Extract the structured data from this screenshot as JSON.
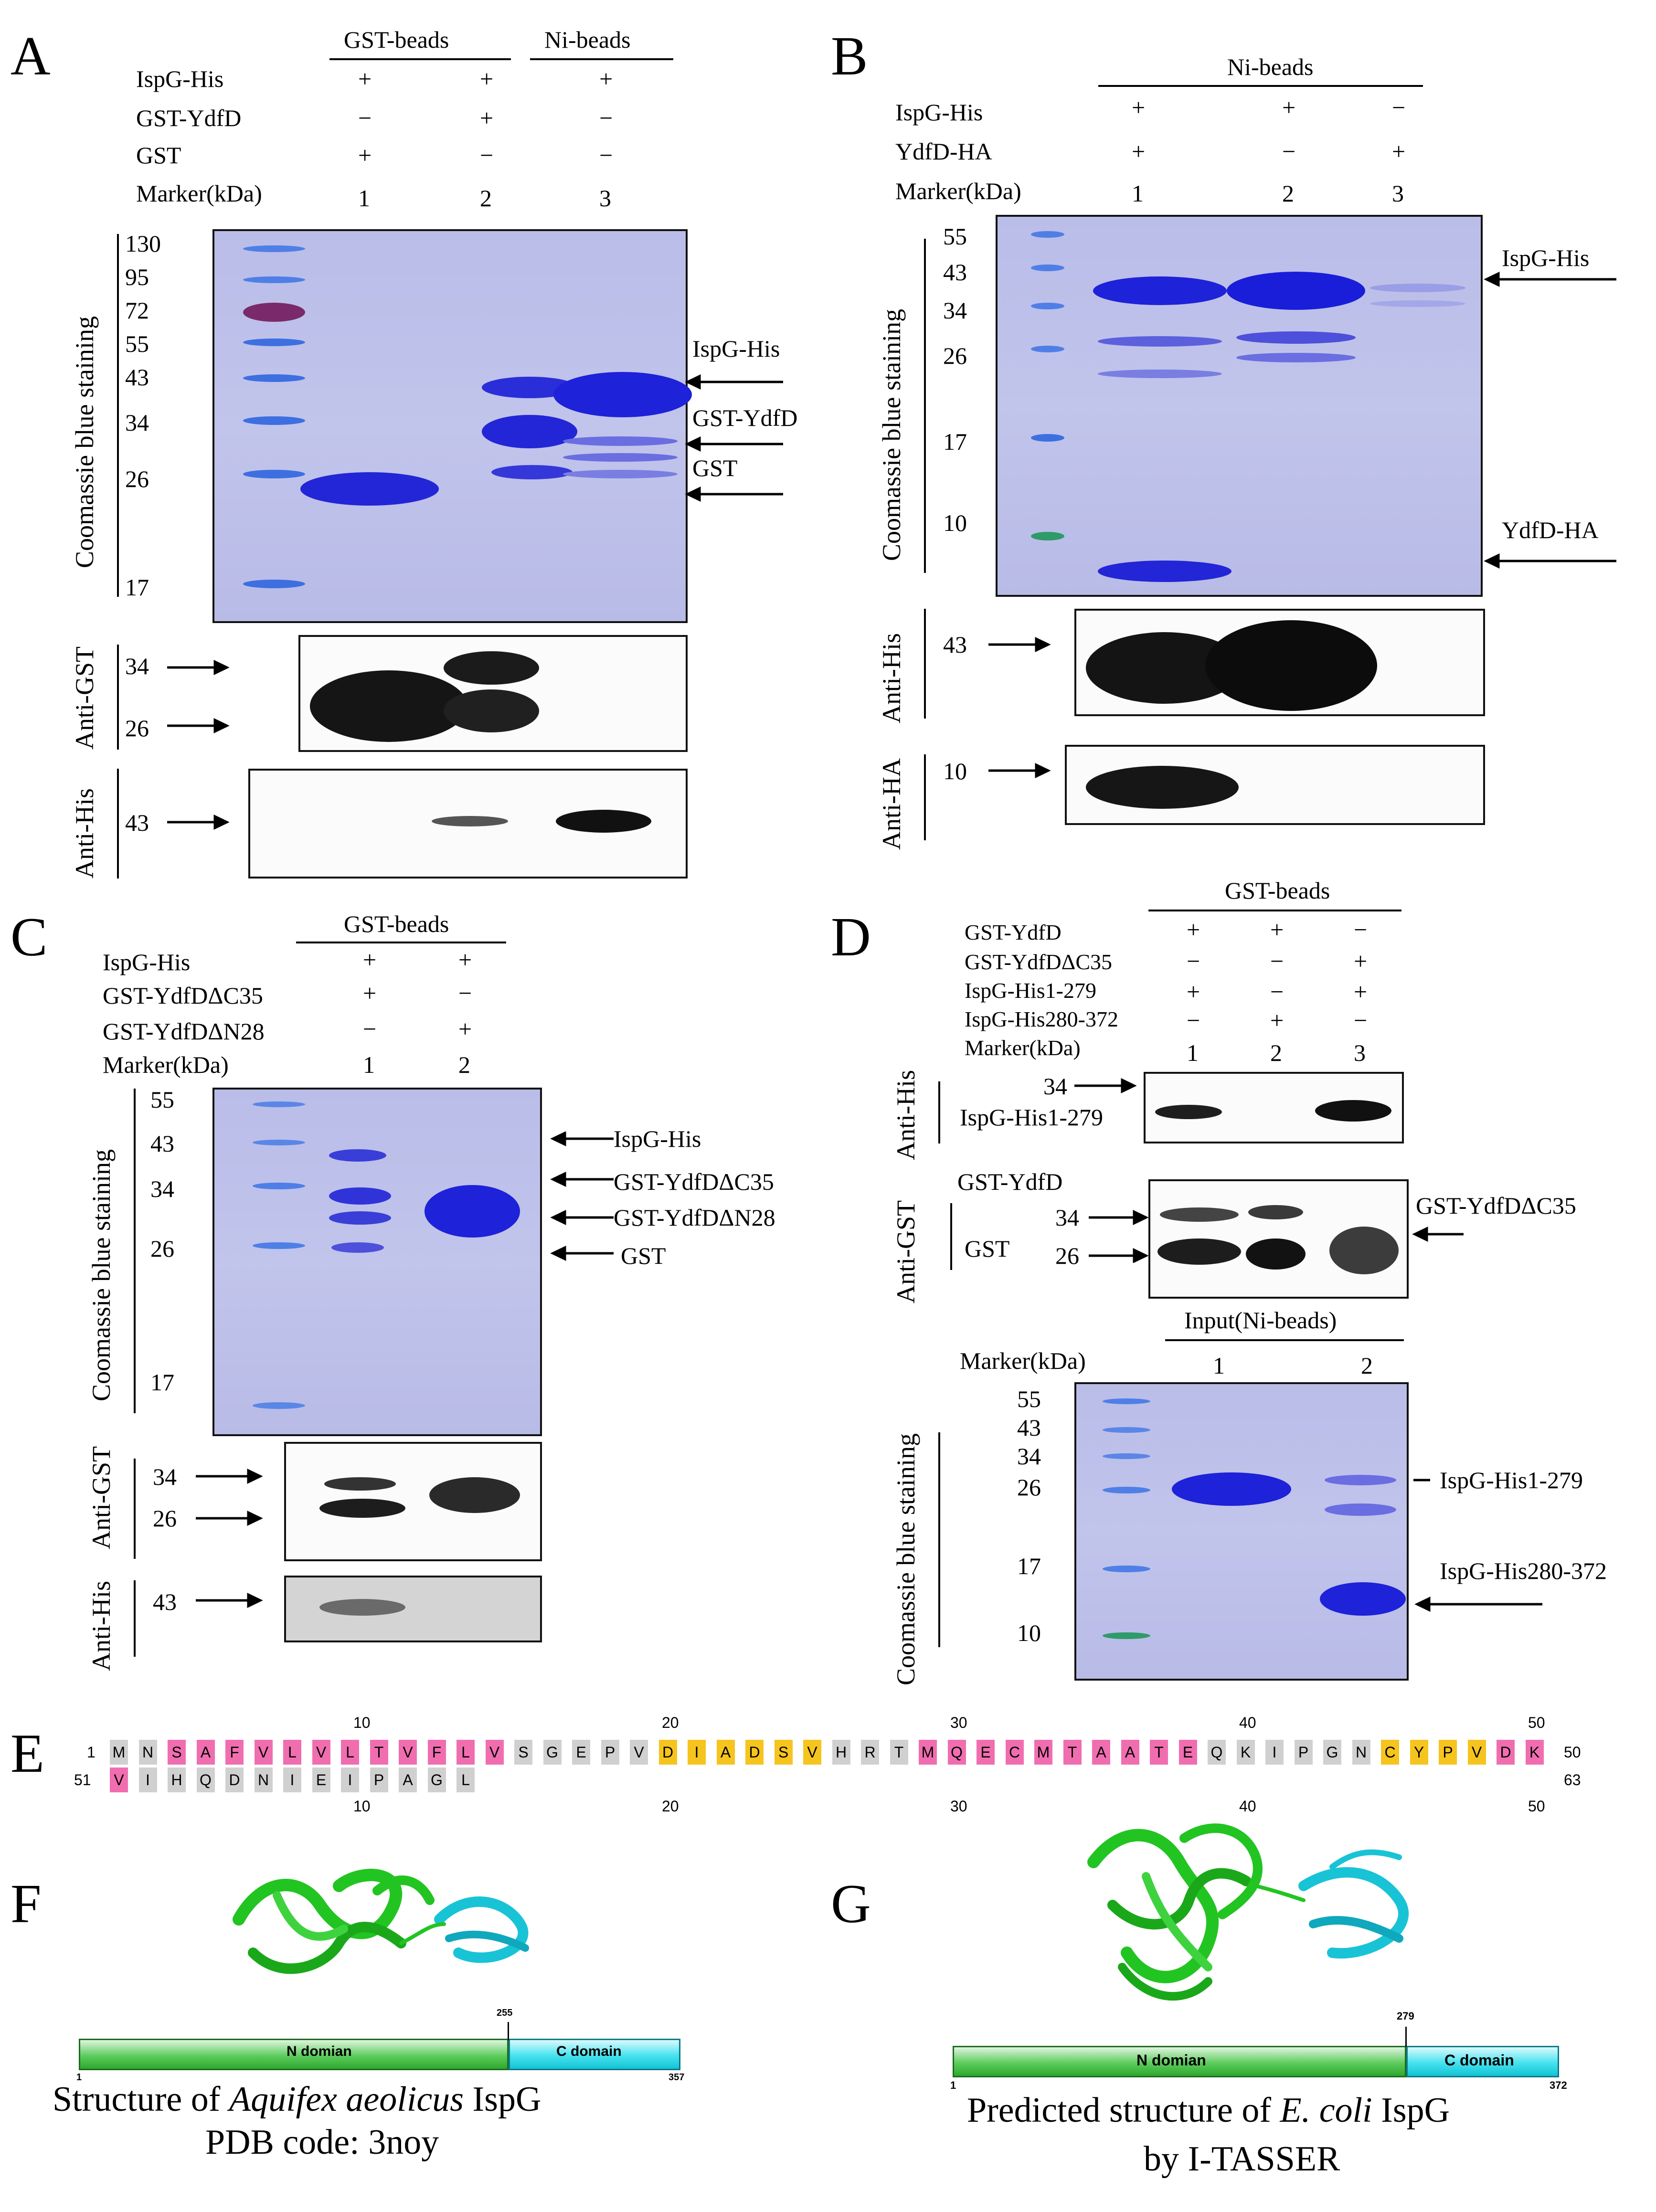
{
  "panels": {
    "A": {
      "label": "A",
      "groups": [
        "GST-beads",
        "Ni-beads"
      ],
      "rows": [
        {
          "name": "IspG-His",
          "signs": [
            "+",
            "+",
            "+"
          ]
        },
        {
          "name": "GST-YdfD",
          "signs": [
            "−",
            "+",
            "−"
          ]
        },
        {
          "name": "GST",
          "signs": [
            "+",
            "−",
            "−"
          ]
        },
        {
          "name": "Marker(kDa)",
          "signs": [
            "1",
            "2",
            "3"
          ]
        }
      ],
      "markers": [
        "130",
        "95",
        "72",
        "55",
        "43",
        "34",
        "26",
        "17"
      ],
      "stain_label": "Coomassie blue staining",
      "band_labels": [
        "IspG-His",
        "GST-YdfD",
        "GST"
      ],
      "blots": [
        {
          "label": "Anti-GST",
          "markers": [
            "34",
            "26"
          ]
        },
        {
          "label": "Anti-His",
          "markers": [
            "43"
          ]
        }
      ]
    },
    "B": {
      "label": "B",
      "groups": [
        "Ni-beads"
      ],
      "rows": [
        {
          "name": "IspG-His",
          "signs": [
            "+",
            "+",
            "−"
          ]
        },
        {
          "name": "YdfD-HA",
          "signs": [
            "+",
            "−",
            "+"
          ]
        },
        {
          "name": "Marker(kDa)",
          "signs": [
            "1",
            "2",
            "3"
          ]
        }
      ],
      "markers": [
        "55",
        "43",
        "34",
        "26",
        "17",
        "10"
      ],
      "stain_label": "Coomassie blue staining",
      "band_labels": [
        "IspG-His",
        "YdfD-HA"
      ],
      "blots": [
        {
          "label": "Anti-His",
          "markers": [
            "43"
          ]
        },
        {
          "label": "Anti-HA",
          "markers": [
            "10"
          ]
        }
      ]
    },
    "C": {
      "label": "C",
      "groups": [
        "GST-beads"
      ],
      "rows": [
        {
          "name": "IspG-His",
          "signs": [
            "+",
            "+"
          ]
        },
        {
          "name": "GST-YdfDΔC35",
          "signs": [
            "+",
            "−"
          ]
        },
        {
          "name": "GST-YdfDΔN28",
          "signs": [
            "−",
            "+"
          ]
        },
        {
          "name": "Marker(kDa)",
          "signs": [
            "1",
            "2"
          ]
        }
      ],
      "markers": [
        "55",
        "43",
        "34",
        "26",
        "17"
      ],
      "stain_label": "Coomassie blue staining",
      "band_labels": [
        "IspG-His",
        "GST-YdfDΔC35",
        "GST-YdfDΔN28",
        "GST"
      ],
      "blots": [
        {
          "label": "Anti-GST",
          "markers": [
            "34",
            "26"
          ]
        },
        {
          "label": "Anti-His",
          "markers": [
            "43"
          ]
        }
      ]
    },
    "D": {
      "label": "D",
      "groups": [
        "GST-beads"
      ],
      "rows": [
        {
          "name": "GST-YdfD",
          "signs": [
            "+",
            "+",
            "−"
          ]
        },
        {
          "name": "GST-YdfDΔC35",
          "signs": [
            "−",
            "−",
            "+"
          ]
        },
        {
          "name": "IspG-His1-279",
          "signs": [
            "+",
            "−",
            "+"
          ]
        },
        {
          "name": "IspG-His280-372",
          "signs": [
            "−",
            "+",
            "−"
          ]
        },
        {
          "name": "Marker(kDa)",
          "signs": [
            "1",
            "2",
            "3"
          ]
        }
      ],
      "his_blot": {
        "label": "Anti-His",
        "marker": "34",
        "name": "IspG-His1-279"
      },
      "gst_blot": {
        "label": "Anti-GST",
        "names": [
          "GST-YdfD",
          "GST"
        ],
        "markers": [
          "34",
          "26"
        ],
        "right_label": "GST-YdfDΔC35"
      },
      "input_group": "Input(Ni-beads)",
      "input_marker_title": "Marker(kDa)",
      "input_lanes": [
        "1",
        "2"
      ],
      "input_markers": [
        "55",
        "43",
        "34",
        "26",
        "17",
        "10"
      ],
      "stain_label": "Coomassie blue staining",
      "band_labels": [
        "IspG-His1-279",
        "IspG-His280-372"
      ]
    },
    "E": {
      "label": "E",
      "ruler": [
        "10",
        "20",
        "30",
        "40",
        "50"
      ],
      "row1_start": "1",
      "row1_end": "50",
      "row2_start": "51",
      "row2_end": "63",
      "row1": [
        "M",
        "N",
        "S",
        "A",
        "F",
        "V",
        "L",
        "V",
        "L",
        "T",
        "V",
        "F",
        "L",
        "V",
        "S",
        "G",
        "E",
        "P",
        "V",
        "D",
        "I",
        "A",
        "D",
        "S",
        "V",
        "H",
        "R",
        "T",
        "M",
        "Q",
        "E",
        "C",
        "M",
        "T",
        "A",
        "A",
        "T",
        "E",
        "Q",
        "K",
        "I",
        "P",
        "G",
        "N",
        "C",
        "Y",
        "P",
        "V",
        "D",
        "K"
      ],
      "row1_colors": [
        "g",
        "g",
        "p",
        "p",
        "p",
        "p",
        "p",
        "p",
        "p",
        "p",
        "p",
        "p",
        "p",
        "p",
        "g",
        "g",
        "g",
        "g",
        "g",
        "y",
        "y",
        "y",
        "y",
        "y",
        "y",
        "g",
        "g",
        "g",
        "p",
        "p",
        "p",
        "p",
        "p",
        "p",
        "p",
        "p",
        "p",
        "p",
        "g",
        "g",
        "g",
        "g",
        "g",
        "g",
        "y",
        "y",
        "y",
        "y",
        "p",
        "p"
      ],
      "row2": [
        "V",
        "I",
        "H",
        "Q",
        "D",
        "N",
        "I",
        "E",
        "I",
        "P",
        "A",
        "G",
        "L"
      ],
      "row2_colors": [
        "p",
        "g",
        "g",
        "g",
        "g",
        "g",
        "g",
        "g",
        "g",
        "g",
        "g",
        "g",
        "g"
      ]
    },
    "F": {
      "label": "F",
      "n_domain": "N domian",
      "c_domain": "C domain",
      "start": "1",
      "split": "255",
      "end": "357",
      "caption_pre": "Structure of ",
      "caption_species": "Aquifex aeolicus",
      "caption_post": " IspG",
      "caption_line2": "PDB code: 3noy"
    },
    "G": {
      "label": "G",
      "n_domain": "N domian",
      "c_domain": "C domain",
      "start": "1",
      "split": "279",
      "end": "372",
      "caption_pre": "Predicted structure of ",
      "caption_species": "E. coli",
      "caption_post": " IspG",
      "caption_line2": "by I-TASSER"
    }
  },
  "colors": {
    "gel_background": "#bcc0e9",
    "band_blue": "#1e22d8",
    "marker_blue": "#3d6fe0",
    "n_domain_green": "#3fbf3f",
    "c_domain_cyan": "#19d3e6",
    "seq_pink": "#f06eb0",
    "seq_yellow": "#f6c41f",
    "seq_gray": "#d0d0d0"
  }
}
